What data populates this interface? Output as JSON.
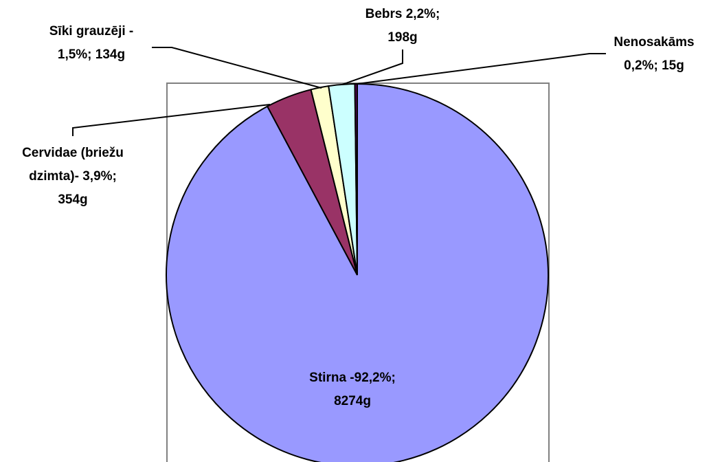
{
  "chart_data": {
    "type": "pie",
    "title": "",
    "slices": [
      {
        "label_lines": [
          "Stirna -92,2%;",
          "8274g"
        ],
        "percent": 92.2,
        "grams": 8274,
        "color": "#9999ff"
      },
      {
        "label_lines": [
          "Cervidae (briežu",
          "dzimta)- 3,9%;",
          "354g"
        ],
        "percent": 3.9,
        "grams": 354,
        "color": "#993366"
      },
      {
        "label_lines": [
          "Sīki grauzēji -",
          "1,5%; 134g"
        ],
        "percent": 1.5,
        "grams": 134,
        "color": "#ffffcc"
      },
      {
        "label_lines": [
          "Bebrs 2,2%;",
          "198g"
        ],
        "percent": 2.2,
        "grams": 198,
        "color": "#ccffff"
      },
      {
        "label_lines": [
          "Nenosakāms",
          "0,2%; 15g"
        ],
        "percent": 0.2,
        "grams": 15,
        "color": "#660066"
      }
    ],
    "legend": "none",
    "grid": false
  }
}
